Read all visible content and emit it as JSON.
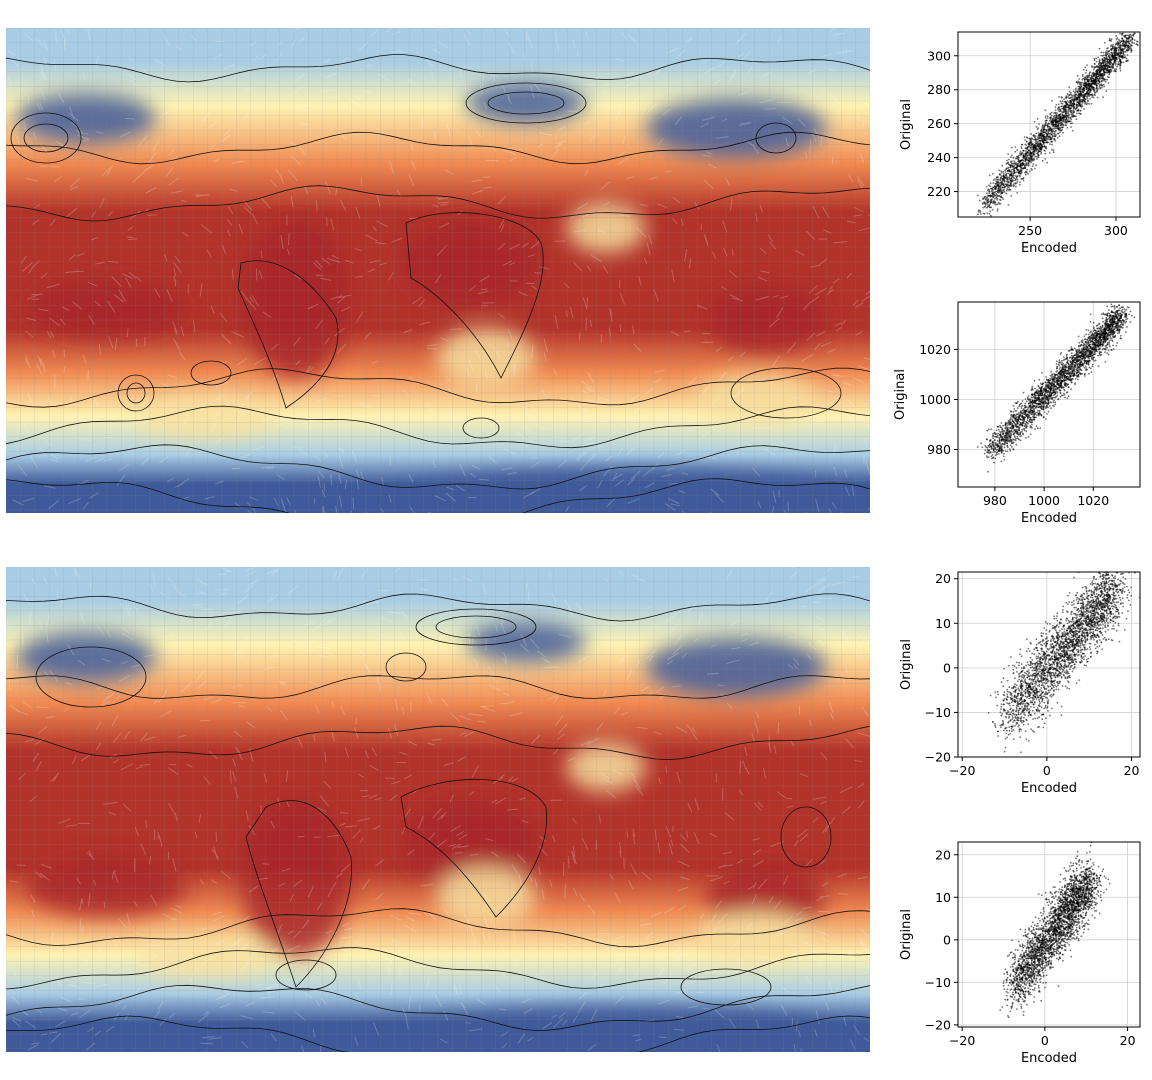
{
  "maps": [
    {
      "id": "top",
      "colormap": "RdYlBu_r"
    },
    {
      "id": "bottom",
      "colormap": "RdYlBu_r"
    }
  ],
  "colors": {
    "hot": "#b2332a",
    "warm": "#f08a52",
    "mild": "#fef3b3",
    "cool": "#a9cde4",
    "cold": "#3f5a9a",
    "contour": "#111111",
    "point": "#000000",
    "grid": "#d0d0d0"
  },
  "chart_data": [
    {
      "type": "scatter",
      "id": "temperature",
      "xlabel": "Encoded",
      "ylabel": "Original",
      "xlim": [
        208,
        314
      ],
      "ylim": [
        205,
        314
      ],
      "xticks": [
        250,
        300
      ],
      "yticks": [
        220,
        240,
        260,
        280,
        300
      ],
      "grid": true,
      "relationship": {
        "from": [
          222,
          210
        ],
        "to": [
          308,
          310
        ],
        "spread": 4
      }
    },
    {
      "type": "scatter",
      "id": "pressure",
      "xlabel": "Encoded",
      "ylabel": "Original",
      "xlim": [
        965,
        1039
      ],
      "ylim": [
        965,
        1039
      ],
      "xticks": [
        980,
        1000,
        1020
      ],
      "yticks": [
        980,
        1000,
        1020
      ],
      "grid": true,
      "relationship": {
        "from": [
          977,
          978
        ],
        "to": [
          1032,
          1034
        ],
        "spread": 3
      }
    },
    {
      "type": "scatter",
      "id": "wind-u",
      "xlabel": "Encoded",
      "ylabel": "Original",
      "xlim": [
        -21,
        22
      ],
      "ylim": [
        -20,
        21.5
      ],
      "xticks": [
        -20,
        0,
        20
      ],
      "yticks": [
        -20,
        -10,
        0,
        10,
        20
      ],
      "grid": true,
      "relationship": {
        "from": [
          -10,
          -12
        ],
        "to": [
          16,
          18
        ],
        "spread": 3.5
      }
    },
    {
      "type": "scatter",
      "id": "wind-v",
      "xlabel": "Encoded",
      "ylabel": "Original",
      "xlim": [
        -21,
        23
      ],
      "ylim": [
        -20.5,
        23
      ],
      "xticks": [
        -20,
        0,
        20
      ],
      "yticks": [
        -20,
        -10,
        0,
        10,
        20
      ],
      "grid": true,
      "relationship": {
        "from": [
          -8,
          -12
        ],
        "to": [
          11,
          14
        ],
        "spread": 3
      }
    }
  ]
}
